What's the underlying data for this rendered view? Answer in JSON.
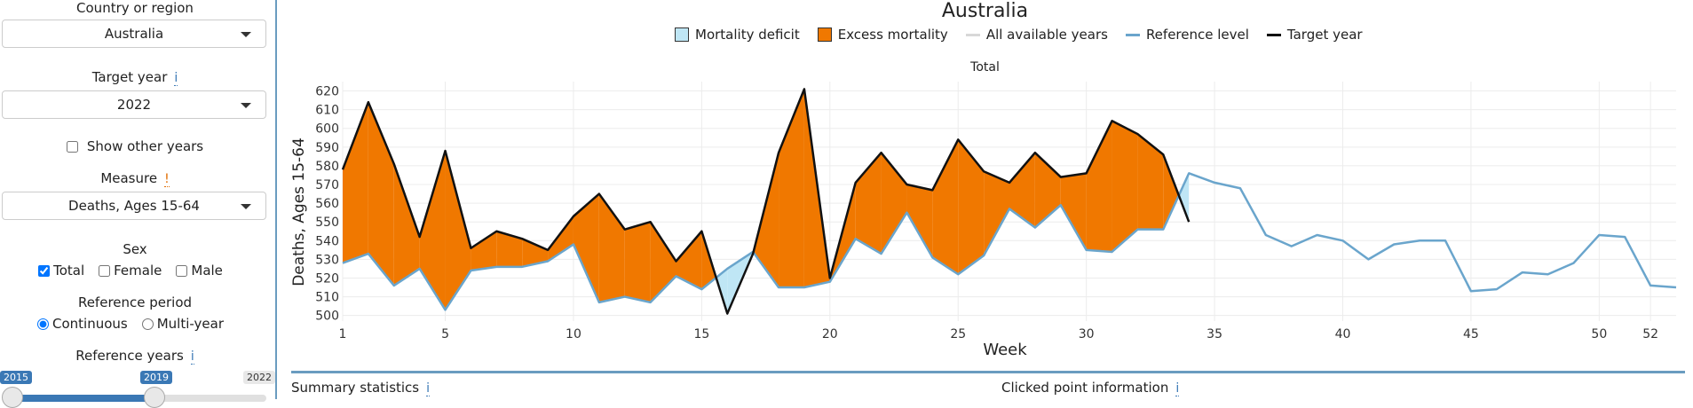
{
  "sidebar": {
    "country_label": "Country or region",
    "country_value": "Australia",
    "target_year_label": "Target year",
    "target_year_value": "2022",
    "show_other_years": "Show other years",
    "measure_label": "Measure",
    "measure_value": "Deaths, Ages 15-64",
    "sex_label": "Sex",
    "sex_options": [
      "Total",
      "Female",
      "Male"
    ],
    "reference_period_label": "Reference period",
    "reference_period_options": [
      "Continuous",
      "Multi-year"
    ],
    "reference_years_label": "Reference years",
    "slider_min": "2015",
    "slider_value": "2019",
    "slider_max": "2022",
    "info_glyph": "i",
    "warn_glyph": "!"
  },
  "bottom": {
    "summary": "Summary statistics",
    "clicked": "Clicked point information"
  },
  "chart_data": {
    "type": "area",
    "title": "Australia",
    "panel_title": "Total",
    "xlabel": "Week",
    "ylabel": "Deaths, Ages 15-64",
    "legend": [
      "Mortality deficit",
      "Excess mortality",
      "All available years",
      "Reference level",
      "Target year"
    ],
    "legend_placement": "top",
    "colors": {
      "deficit": "#bfe6f5",
      "excess": "#f07800",
      "all_years": "#d8d8d8",
      "reference": "#6aa5cc",
      "target": "#111111"
    },
    "grid": true,
    "xlim": [
      1,
      53
    ],
    "ylim": [
      497,
      625
    ],
    "x_ticks": [
      1,
      5,
      10,
      15,
      20,
      25,
      30,
      35,
      40,
      45,
      50,
      52
    ],
    "y_ticks": [
      500,
      510,
      520,
      530,
      540,
      550,
      560,
      570,
      580,
      590,
      600,
      610,
      620
    ],
    "reference": {
      "x": [
        1,
        2,
        3,
        4,
        5,
        6,
        7,
        8,
        9,
        10,
        11,
        12,
        13,
        14,
        15,
        16,
        17,
        18,
        19,
        20,
        21,
        22,
        23,
        24,
        25,
        26,
        27,
        28,
        29,
        30,
        31,
        32,
        33,
        34,
        35,
        36,
        37,
        38,
        39,
        40,
        41,
        42,
        43,
        44,
        45,
        46,
        47,
        48,
        49,
        50,
        51,
        52,
        53
      ],
      "y": [
        528,
        533,
        516,
        525,
        503,
        524,
        526,
        526,
        529,
        538,
        507,
        510,
        507,
        521,
        514,
        525,
        534,
        515,
        515,
        518,
        541,
        533,
        555,
        531,
        522,
        532,
        557,
        547,
        559,
        535,
        534,
        546,
        546,
        576,
        571,
        568,
        543,
        537,
        543,
        540,
        530,
        538,
        540,
        540,
        513,
        514,
        523,
        522,
        528,
        543,
        542,
        516,
        515
      ]
    },
    "target": {
      "x": [
        1,
        2,
        3,
        4,
        5,
        6,
        7,
        8,
        9,
        10,
        11,
        12,
        13,
        14,
        15,
        16,
        17,
        18,
        19,
        20,
        21,
        22,
        23,
        24,
        25,
        26,
        27,
        28,
        29,
        30,
        31,
        32,
        33,
        34
      ],
      "y": [
        578,
        614,
        581,
        542,
        588,
        536,
        545,
        541,
        535,
        553,
        565,
        546,
        550,
        529,
        545,
        501,
        533,
        587,
        621,
        520,
        571,
        587,
        570,
        567,
        594,
        577,
        571,
        587,
        574,
        576,
        604,
        597,
        586,
        550
      ]
    }
  }
}
